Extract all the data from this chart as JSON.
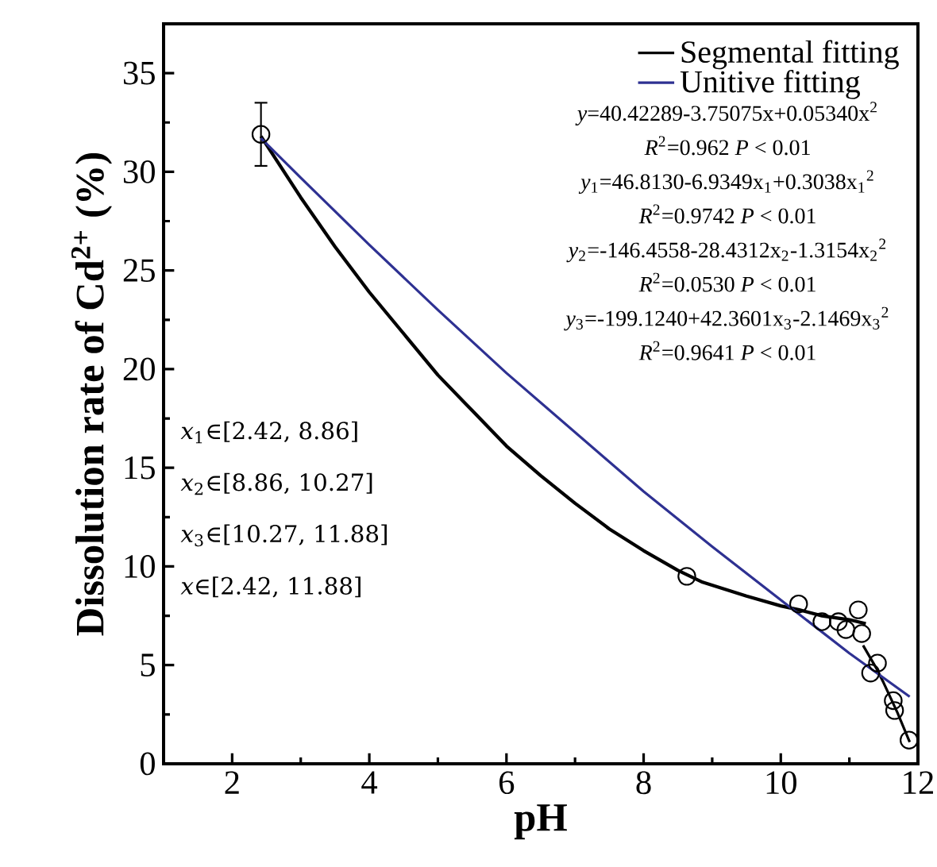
{
  "chart_data": {
    "type": "scatter",
    "xlabel": "pH",
    "ylabel": "Dissolution rate of Cd$^{2+}$ (%)",
    "xlim": [
      1,
      12
    ],
    "ylim": [
      0,
      37.5
    ],
    "xticks": [
      2,
      4,
      6,
      8,
      10,
      12
    ],
    "yticks": [
      0,
      5,
      10,
      15,
      20,
      25,
      30,
      35
    ],
    "grid": false,
    "legend": "top right",
    "series": [
      {
        "color": "#000000",
        "marker": "circle",
        "x": [
          2.42,
          8.63,
          10.26,
          10.6,
          10.84,
          10.95,
          11.13,
          11.18,
          11.31,
          11.41,
          11.64,
          11.66,
          11.87
        ],
        "values": [
          31.9,
          9.5,
          8.1,
          7.2,
          7.2,
          6.8,
          7.8,
          6.6,
          4.6,
          5.1,
          3.2,
          2.7,
          1.2
        ],
        "errors": [
          1.6,
          null,
          null,
          null,
          null,
          null,
          null,
          null,
          null,
          null,
          null,
          null,
          null
        ]
      },
      {
        "type": "line",
        "name": "Segmental fitting",
        "color": "#000000",
        "x": [
          2.42,
          3,
          3.5,
          4,
          4.5,
          5,
          5.5,
          6,
          6.5,
          7,
          7.5,
          8,
          8.5,
          8.86,
          9.5,
          10,
          10.27,
          10.6,
          11,
          11.24
        ],
        "values": [
          31.8,
          28.7,
          26.2,
          23.9,
          21.8,
          19.7,
          17.9,
          16.1,
          14.6,
          13.2,
          11.9,
          10.8,
          9.8,
          9.2,
          8.5,
          8.0,
          7.8,
          7.5,
          7.3,
          7.1
        ]
      },
      {
        "type": "line",
        "color": "#000000",
        "x": [
          11.2,
          11.4,
          11.5,
          11.7,
          11.88
        ],
        "values": [
          6.0,
          4.8,
          4.1,
          2.6,
          1.1
        ]
      },
      {
        "type": "line",
        "name": "Unitive fitting",
        "color": "#2e3192",
        "x": [
          2.42,
          3,
          4,
          5,
          6,
          7,
          8,
          9,
          10,
          11,
          11.88
        ],
        "values": [
          31.7,
          29.7,
          26.3,
          23.0,
          19.8,
          16.8,
          13.8,
          11.0,
          8.3,
          5.6,
          3.4
        ]
      }
    ],
    "annotations": [
      "*y*=40.42289-3.75075x+0.05340x$^{2}$",
      "*R*$^{2}$=0.962   *P* < 0.01",
      "*y*$_{1}$=46.8130-6.9349x$_{1}$+0.3038x$_{1}$$^{2}$",
      "*R*$^{2}$=0.9742  *P* < 0.01",
      "*y*$_{2}$=-146.4558-28.4312x$_{2}$-1.3154x$_{2}$$^{2}$",
      "*R*$^{2}$=0.0530  *P* < 0.01",
      "*y*$_{3}$=-199.1240+42.3601x$_{3}$-2.1469x$_{3}$$^{2}$",
      "*R*$^{2}$=0.9641  *P* < 0.01",
      "*x*$_{1}$∈[2.42, 8.86]",
      "*x*$_{2}$∈[8.86, 10.27]",
      "*x*$_{3}$∈[10.27, 11.88]",
      "*x*∈[2.42, 11.88]"
    ]
  }
}
